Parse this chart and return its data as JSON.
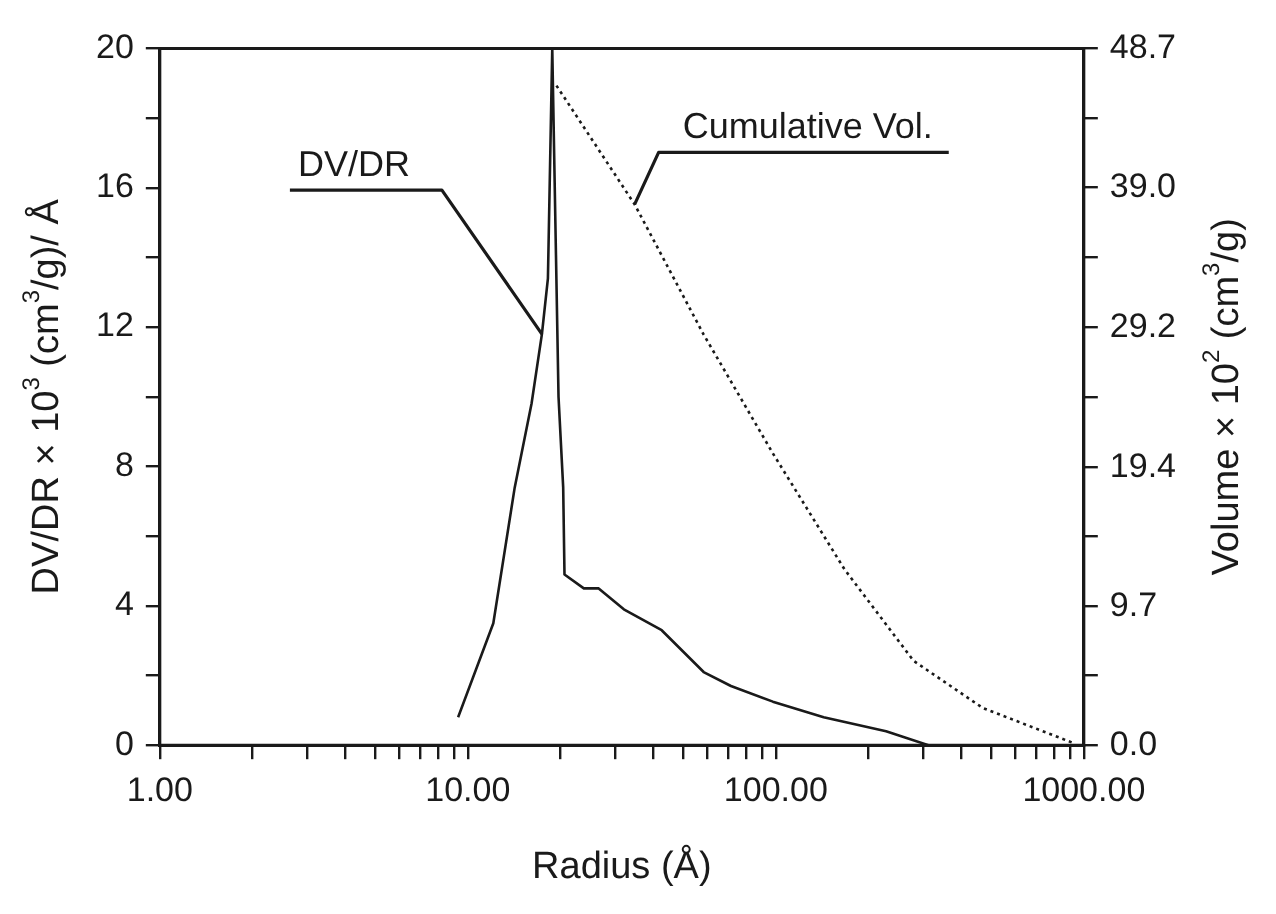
{
  "chart_data": {
    "type": "line",
    "xlabel": "Radius (Å)",
    "ylabel": "DV/DR × 10$^{3}$ (cm$^{3}$/g)/ Å",
    "y2label": "Volume × 10$^{2}$ (cm$^{3}$/g)",
    "log": "x",
    "grid": false,
    "legend": false,
    "marker": "none",
    "xlim": [
      1,
      1000
    ],
    "xticks": [
      {
        "value": 1,
        "label": "1.00"
      },
      {
        "value": 2,
        "label": null
      },
      {
        "value": 3,
        "label": null
      },
      {
        "value": 4,
        "label": null
      },
      {
        "value": 5,
        "label": null
      },
      {
        "value": 6,
        "label": null
      },
      {
        "value": 7,
        "label": null
      },
      {
        "value": 8,
        "label": null
      },
      {
        "value": 9,
        "label": null
      },
      {
        "value": 10,
        "label": "10.00"
      },
      {
        "value": 20,
        "label": null
      },
      {
        "value": 30,
        "label": null
      },
      {
        "value": 40,
        "label": null
      },
      {
        "value": 50,
        "label": null
      },
      {
        "value": 60,
        "label": null
      },
      {
        "value": 70,
        "label": null
      },
      {
        "value": 80,
        "label": null
      },
      {
        "value": 90,
        "label": null
      },
      {
        "value": 100,
        "label": "100.00"
      },
      {
        "value": 200,
        "label": null
      },
      {
        "value": 300,
        "label": null
      },
      {
        "value": 400,
        "label": null
      },
      {
        "value": 500,
        "label": null
      },
      {
        "value": 600,
        "label": null
      },
      {
        "value": 700,
        "label": null
      },
      {
        "value": 800,
        "label": null
      },
      {
        "value": 900,
        "label": null
      },
      {
        "value": 1000,
        "label": "1000.00"
      }
    ],
    "ylim": [
      0,
      20
    ],
    "yticks": [
      0,
      {
        "value": 2,
        "label": null
      },
      4,
      {
        "value": 6,
        "label": null
      },
      8,
      {
        "value": 10,
        "label": null
      },
      12,
      {
        "value": 14,
        "label": null
      },
      16,
      {
        "value": 18,
        "label": null
      },
      20
    ],
    "y2lim": [
      0,
      48.7
    ],
    "y2ticks": [
      {
        "value": 0,
        "label": "0.0"
      },
      {
        "value": 4.87,
        "label": null
      },
      9.7,
      {
        "value": 14.6,
        "label": null
      },
      19.4,
      {
        "value": 24.35,
        "label": null
      },
      29.2,
      {
        "value": 34.1,
        "label": null
      },
      {
        "value": 39,
        "label": "39.0"
      },
      {
        "value": 43.8,
        "label": null
      },
      48.7
    ],
    "series": [
      {
        "name": "DV/DR",
        "color": "#1a1a1a",
        "line_style": "solid",
        "x": [
          9.3,
          12.1,
          14.2,
          16.1,
          17.4,
          18.2,
          18.8,
          19.7,
          20.4,
          20.6,
          23.8,
          26.6,
          32.1,
          42.6,
          58.3,
          71.5,
          97.8,
          143,
          228,
          313,
          614,
          1000
        ],
        "values": [
          0.8,
          3.5,
          7.4,
          9.8,
          11.8,
          13.4,
          20,
          10,
          7.4,
          4.9,
          4.5,
          4.5,
          3.9,
          3.3,
          2.1,
          1.7,
          1.25,
          0.8,
          0.4,
          0,
          0,
          0
        ]
      },
      {
        "name": "Cumulative Vol.",
        "color": "#1a1a1a",
        "line_style": "dotted",
        "axis": "y2",
        "x": [
          19.4,
          34.8,
          58.3,
          97.8,
          167,
          280,
          470,
          938
        ],
        "values": [
          46.1,
          37.8,
          28.7,
          20.4,
          12.3,
          5.9,
          2.6,
          0.1
        ]
      }
    ]
  }
}
